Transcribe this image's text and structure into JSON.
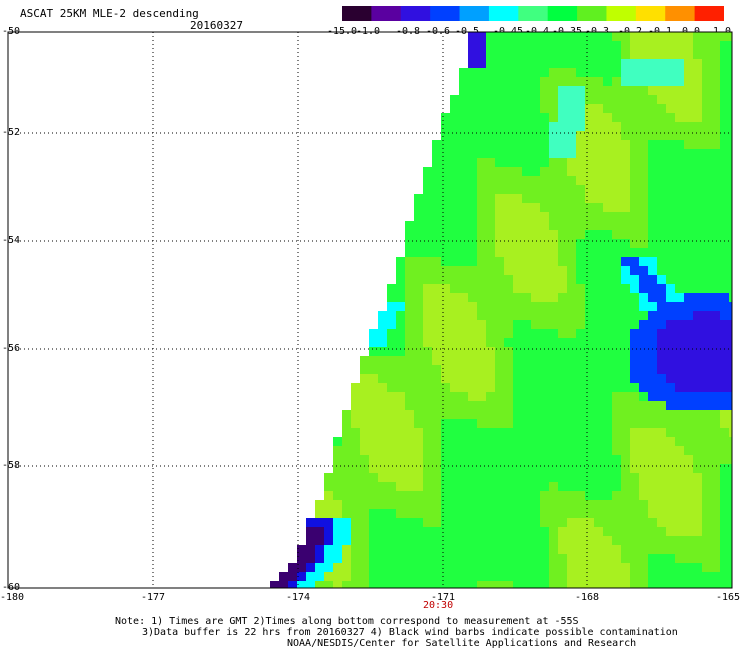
{
  "header": {
    "title": "ASCAT 25KM MLE-2 descending",
    "date": "20160327"
  },
  "colorbar": {
    "labels": [
      "-15.0",
      "-1.0",
      "-0.8",
      "-0.6",
      "-0.5",
      "-0.45",
      "-0.4",
      "-0.35",
      "-0.3",
      "-0.2",
      "-0.1",
      "0.0",
      "1.0"
    ],
    "colors": [
      "#2a0030",
      "#5a00a0",
      "#3010e0",
      "#0040ff",
      "#00a0ff",
      "#00ffff",
      "#40ff80",
      "#00ff40",
      "#60f020",
      "#c0ff00",
      "#ffe000",
      "#ff9000",
      "#ff2000"
    ]
  },
  "axes": {
    "lat_labels": [
      "-50",
      "-52",
      "-54",
      "-56",
      "-58",
      "-60"
    ],
    "lon_labels": [
      "-180",
      "-177",
      "-174",
      "-171",
      "-168",
      "-165"
    ],
    "time_label": "20:30"
  },
  "notes": {
    "line1": "Note: 1) Times are GMT 2)Times along bottom correspond to measurement at -55S",
    "line2": "3)Data buffer is 22 hrs from 20160327 4) Black wind barbs indicate possible contamination",
    "line3": "NOAA/NESDIS/Center for Satellite Applications and Research"
  }
}
